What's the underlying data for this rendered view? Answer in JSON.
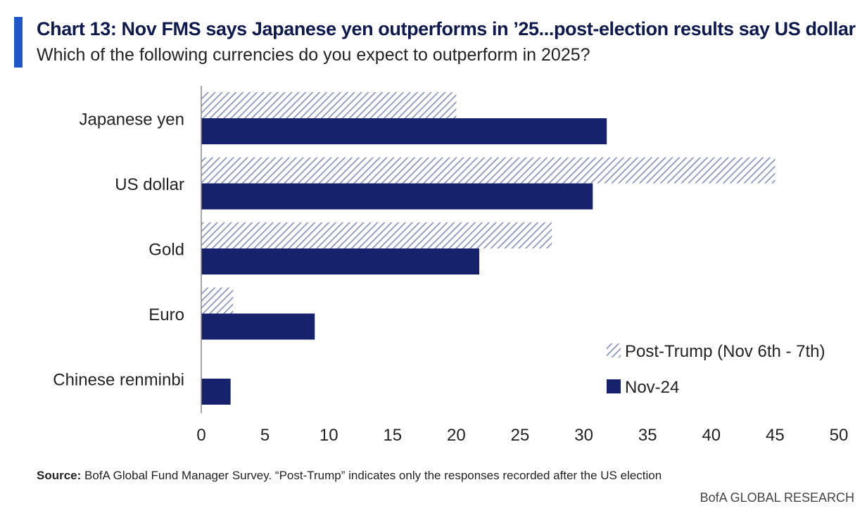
{
  "header": {
    "title": "Chart 13: Nov FMS says Japanese yen outperforms in ’25...post-election results say US dollar",
    "subtitle": "Which of the following currencies do you expect to outperform in 2025?"
  },
  "footer": {
    "source_label": "Source:",
    "source_text": " BofA Global Fund Manager Survey. “Post-Trump” indicates only the responses recorded after the US election",
    "brand": "BofA GLOBAL RESEARCH"
  },
  "colors": {
    "accent": "#1f56c9",
    "nov": "#16226b",
    "post_trump_hatch": "#8a96bd"
  },
  "chart_data": {
    "type": "bar",
    "orientation": "horizontal",
    "title": "Chart 13: Nov FMS says Japanese yen outperforms in ’25...post-election results say US dollar",
    "xlabel": "",
    "ylabel": "",
    "categories": [
      "Japanese yen",
      "US dollar",
      "Gold",
      "Euro",
      "Chinese renminbi"
    ],
    "series": [
      {
        "name": "Post-Trump (Nov 6th - 7th)",
        "pattern": "hatched",
        "values": [
          20,
          45,
          27.5,
          2.5,
          0
        ]
      },
      {
        "name": "Nov-24",
        "pattern": "solid",
        "values": [
          31.8,
          30.7,
          21.8,
          8.9,
          2.3
        ]
      }
    ],
    "xlim": [
      0,
      50
    ],
    "xticks": [
      0,
      5,
      10,
      15,
      20,
      25,
      30,
      35,
      40,
      45,
      50
    ],
    "grid": false,
    "legend_position": "bottom-right"
  }
}
